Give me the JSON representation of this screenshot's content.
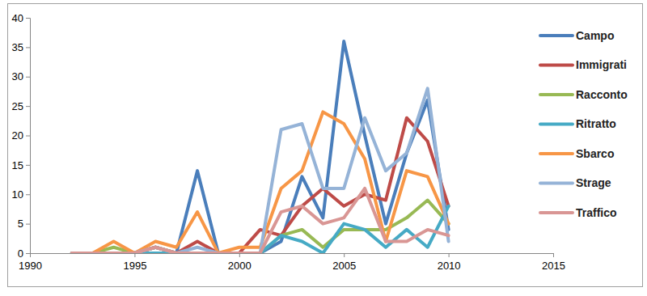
{
  "chart_data": {
    "type": "line",
    "x": [
      1992,
      1993,
      1994,
      1995,
      1996,
      1997,
      1998,
      1999,
      2000,
      2001,
      2002,
      2003,
      2004,
      2005,
      2006,
      2007,
      2008,
      2009,
      2010
    ],
    "series": [
      {
        "name": "Campo",
        "color": "#4a7ebb",
        "values": [
          0,
          0,
          0,
          0,
          1,
          0,
          14,
          0,
          0,
          0,
          2,
          13,
          6,
          36,
          20,
          5,
          17,
          26,
          4
        ]
      },
      {
        "name": "Immigrati",
        "color": "#be4b48",
        "values": [
          0,
          0,
          0,
          0,
          1,
          0,
          2,
          0,
          0,
          4,
          3,
          8,
          11,
          8,
          10,
          9,
          23,
          19,
          8
        ]
      },
      {
        "name": "Racconto",
        "color": "#98b954",
        "values": [
          0,
          0,
          1,
          0,
          1,
          0,
          0,
          0,
          0,
          0,
          3,
          4,
          1,
          4,
          4,
          4,
          6,
          9,
          5
        ]
      },
      {
        "name": "Ritratto",
        "color": "#46aac5",
        "values": [
          0,
          0,
          0,
          0,
          0,
          0,
          0,
          0,
          0,
          0,
          3,
          2,
          0,
          5,
          4,
          1,
          4,
          1,
          8
        ]
      },
      {
        "name": "Sbarco",
        "color": "#f79646",
        "values": [
          0,
          0,
          2,
          0,
          2,
          1,
          7,
          0,
          1,
          1,
          11,
          14,
          24,
          22,
          16,
          2,
          14,
          13,
          5
        ]
      },
      {
        "name": "Strage",
        "color": "#95b3d7",
        "values": [
          0,
          0,
          0,
          0,
          1,
          0,
          1,
          0,
          0,
          0,
          21,
          22,
          11,
          11,
          23,
          14,
          17,
          28,
          2
        ]
      },
      {
        "name": "Traffico",
        "color": "#d99694",
        "values": [
          0,
          0,
          0,
          0,
          1,
          0,
          0,
          0,
          0,
          0,
          7,
          8,
          5,
          6,
          11,
          2,
          2,
          4,
          3
        ]
      }
    ],
    "xlim": [
      1990,
      2015
    ],
    "xticks": [
      1990,
      1995,
      2000,
      2005,
      2010,
      2015
    ],
    "ylim": [
      0,
      40
    ],
    "yticks": [
      0,
      5,
      10,
      15,
      20,
      25,
      30,
      35,
      40
    ],
    "grid": false,
    "legend": "right"
  }
}
